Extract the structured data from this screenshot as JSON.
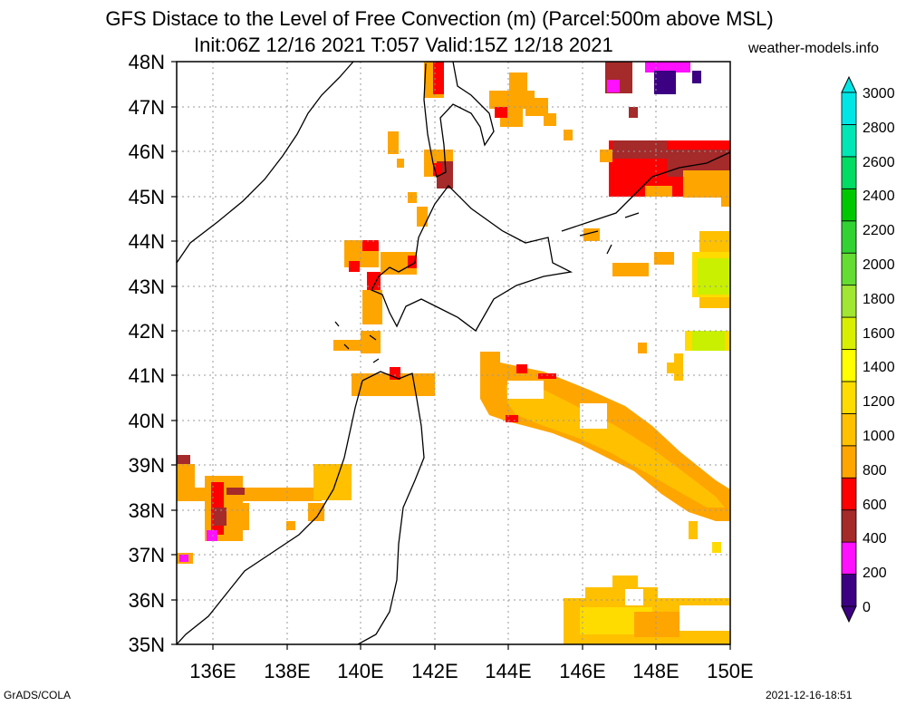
{
  "title": {
    "line1": "GFS Distace to the Level of Free Convection (m) (Parcel:500m above MSL)",
    "line2": "Init:06Z 12/16 2021 T:057 Valid:15Z 12/18 2021"
  },
  "site": "weather-models.info",
  "footer": {
    "left": "GrADS/COLA",
    "right": "2021-12-16-18:51"
  },
  "map": {
    "lon_range": [
      135,
      150
    ],
    "lat_range": [
      35,
      48
    ],
    "lat_labels": [
      "48N",
      "47N",
      "46N",
      "45N",
      "44N",
      "43N",
      "42N",
      "41N",
      "40N",
      "39N",
      "38N",
      "37N",
      "36N",
      "35N"
    ],
    "lon_labels": [
      "136E",
      "138E",
      "140E",
      "142E",
      "144E",
      "146E",
      "148E",
      "150E"
    ]
  },
  "colorbar": {
    "labels": [
      "3000",
      "2800",
      "2600",
      "2400",
      "2200",
      "2000",
      "1800",
      "1600",
      "1400",
      "1200",
      "1000",
      "800",
      "600",
      "400",
      "200",
      "0"
    ],
    "colors_bottom_to_top": [
      "#3c0082",
      "#ff10ff",
      "#a52a2a",
      "#ff0000",
      "#ffa500",
      "#ffc000",
      "#ffdc00",
      "#ffff00",
      "#d8f000",
      "#a0e632",
      "#64dc32",
      "#32d232",
      "#00c800",
      "#00dc64",
      "#00e6b4",
      "#00e6e6"
    ],
    "low_arrow_color": "#3c0082",
    "high_arrow_color": "#00e6e6"
  },
  "legend_colors": {
    "orange": "#ffa500",
    "gold": "#ffc000",
    "yellow": "#ffdc00",
    "yellowgreen": "#c8f000",
    "red": "#ff0000",
    "brown": "#a52a2a",
    "magenta": "#ff10ff",
    "indigo": "#3c0082"
  }
}
